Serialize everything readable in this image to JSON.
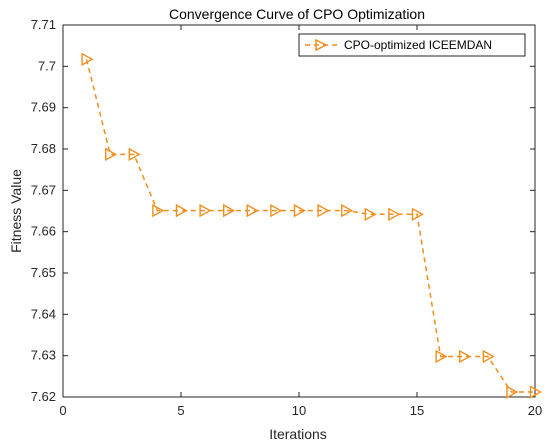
{
  "chart_data": {
    "type": "line",
    "title": "Convergence Curve of CPO Optimization",
    "xlabel": "Iterations",
    "ylabel": "Fitness Value",
    "xlim": [
      0,
      20
    ],
    "ylim": [
      7.62,
      7.71
    ],
    "xticks": [
      0,
      5,
      10,
      15,
      20
    ],
    "xtick_labels": [
      "0",
      "5",
      "10",
      "15",
      "20"
    ],
    "yticks": [
      7.62,
      7.63,
      7.64,
      7.65,
      7.66,
      7.67,
      7.68,
      7.69,
      7.7,
      7.71
    ],
    "ytick_labels": [
      "7.62",
      "7.63",
      "7.64",
      "7.65",
      "7.66",
      "7.67",
      "7.68",
      "7.69",
      "7.7",
      "7.71"
    ],
    "grid": false,
    "legend_position": "top-right",
    "series": [
      {
        "name": "CPO-optimized ICEEMDAN",
        "color": "#F28E1C",
        "line_style": "dashed",
        "marker": "right-triangle",
        "x": [
          1,
          2,
          3,
          4,
          5,
          6,
          7,
          8,
          9,
          10,
          11,
          12,
          13,
          14,
          15,
          16,
          17,
          18,
          19,
          20
        ],
        "y": [
          7.7017,
          7.6787,
          7.6787,
          7.6651,
          7.6651,
          7.6651,
          7.6651,
          7.6651,
          7.6651,
          7.6651,
          7.6651,
          7.6651,
          7.6642,
          7.6642,
          7.6642,
          7.6298,
          7.6298,
          7.6298,
          7.6212,
          7.6212
        ]
      }
    ]
  }
}
